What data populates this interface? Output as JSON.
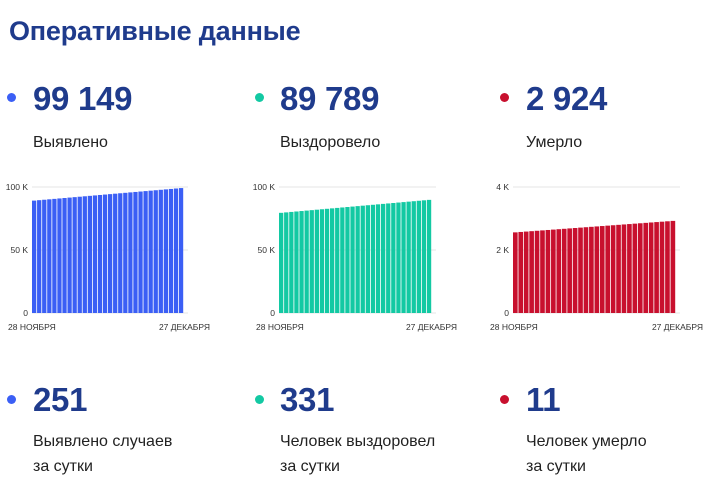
{
  "page": {
    "title": "Оперативные данные"
  },
  "top_stats": [
    {
      "value": "99 149",
      "label": "Выявлено",
      "color": "#3b5ff5"
    },
    {
      "value": "89 789",
      "label": "Выздоровело",
      "color": "#13c9a3"
    },
    {
      "value": "2 924",
      "label": "Умерло",
      "color": "#c8102e"
    }
  ],
  "bottom_stats": [
    {
      "value": "251",
      "label_line1": "Выявлено случаев",
      "label_line2": "за сутки",
      "color": "#3b5ff5"
    },
    {
      "value": "331",
      "label_line1": "Человек выздоровел",
      "label_line2": "за сутки",
      "color": "#13c9a3"
    },
    {
      "value": "11",
      "label_line1": "Человек умерло",
      "label_line2": "за сутки",
      "color": "#c8102e"
    }
  ],
  "chart_data": [
    {
      "type": "bar",
      "color": "#3b5ff5",
      "ylim": [
        0,
        100000
      ],
      "ytick_labels": [
        "100 K",
        "50 K",
        "0"
      ],
      "x_start_label": "28 НОЯБРЯ",
      "x_end_label": "27 ДЕКАБРЯ",
      "start": 89200,
      "end": 99149,
      "count": 30
    },
    {
      "type": "bar",
      "color": "#13c9a3",
      "ylim": [
        0,
        100000
      ],
      "ytick_labels": [
        "100 K",
        "50 K",
        "0"
      ],
      "x_start_label": "28 НОЯБРЯ",
      "x_end_label": "27 ДЕКАБРЯ",
      "start": 79500,
      "end": 89789,
      "count": 30
    },
    {
      "type": "bar",
      "color": "#c8102e",
      "ylim": [
        0,
        4000
      ],
      "ytick_labels": [
        "4 K",
        "2 K",
        "0"
      ],
      "x_start_label": "28 НОЯБРЯ",
      "x_end_label": "27 ДЕКАБРЯ",
      "start": 2560,
      "end": 2924,
      "count": 30
    }
  ]
}
